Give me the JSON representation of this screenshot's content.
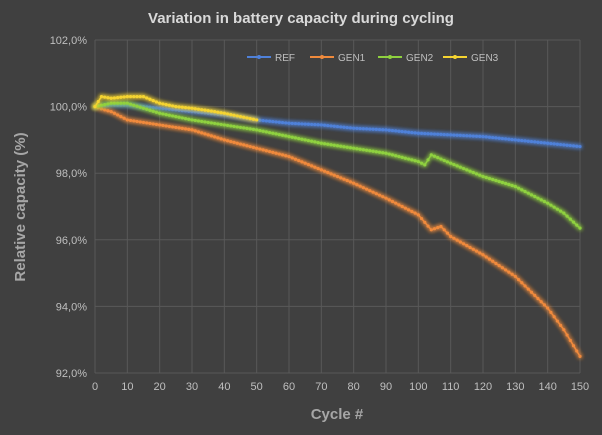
{
  "chart_data": {
    "type": "line",
    "title": "Variation in battery capacity during cycling",
    "xlabel": "Cycle #",
    "ylabel": "Relative capacity (%)",
    "xlim": [
      0,
      150
    ],
    "ylim": [
      92,
      102
    ],
    "xticks": [
      0,
      10,
      20,
      30,
      40,
      50,
      60,
      70,
      80,
      90,
      100,
      110,
      120,
      130,
      140,
      150
    ],
    "yticks": [
      92,
      94,
      96,
      98,
      100,
      102
    ],
    "ytick_labels": [
      "92,0%",
      "94,0%",
      "96,0%",
      "98,0%",
      "100,0%",
      "102,0%"
    ],
    "grid": true,
    "legend_placement": "top",
    "series": [
      {
        "name": "REF",
        "color": "#4f81d9",
        "x": [
          0,
          5,
          10,
          15,
          20,
          30,
          40,
          50,
          60,
          70,
          80,
          90,
          100,
          110,
          120,
          130,
          140,
          150
        ],
        "y": [
          100,
          100.05,
          100.05,
          100.0,
          99.95,
          99.85,
          99.75,
          99.6,
          99.5,
          99.45,
          99.35,
          99.3,
          99.2,
          99.15,
          99.1,
          99.0,
          98.9,
          98.8
        ]
      },
      {
        "name": "GEN1",
        "color": "#f08a3c",
        "x": [
          0,
          3,
          5,
          10,
          20,
          30,
          40,
          50,
          60,
          70,
          80,
          90,
          100,
          104,
          107,
          110,
          120,
          130,
          140,
          145,
          150
        ],
        "y": [
          100,
          99.9,
          99.85,
          99.6,
          99.45,
          99.3,
          99.0,
          98.75,
          98.5,
          98.1,
          97.7,
          97.25,
          96.75,
          96.3,
          96.4,
          96.1,
          95.55,
          94.9,
          93.95,
          93.3,
          92.5
        ]
      },
      {
        "name": "GEN2",
        "color": "#8fd13f",
        "x": [
          0,
          5,
          10,
          20,
          30,
          40,
          50,
          60,
          70,
          80,
          90,
          100,
          102,
          104,
          110,
          120,
          130,
          140,
          145,
          150
        ],
        "y": [
          100,
          100.1,
          100.1,
          99.8,
          99.6,
          99.45,
          99.3,
          99.1,
          98.9,
          98.75,
          98.6,
          98.35,
          98.25,
          98.55,
          98.3,
          97.9,
          97.6,
          97.1,
          96.8,
          96.35
        ]
      },
      {
        "name": "GEN3",
        "color": "#f5d430",
        "x": [
          0,
          2,
          5,
          10,
          15,
          20,
          25,
          30,
          35,
          40,
          45,
          50
        ],
        "y": [
          100,
          100.3,
          100.25,
          100.3,
          100.3,
          100.1,
          100.0,
          99.95,
          99.88,
          99.8,
          99.7,
          99.6
        ]
      }
    ]
  }
}
